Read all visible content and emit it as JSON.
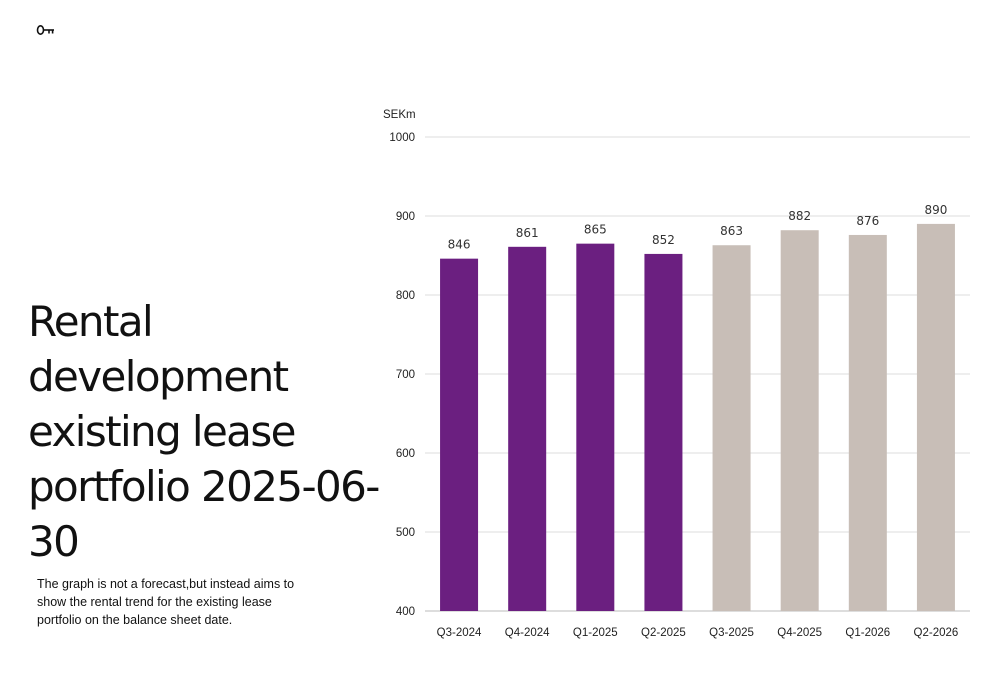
{
  "logo": {
    "icon": "key-icon"
  },
  "title_lines": [
    "Rental development",
    "existing lease",
    "portfolio 2025-06-30"
  ],
  "note": "The graph is not a forecast,but instead aims to show the rental trend for the existing lease portfolio on the balance sheet date.",
  "colors": {
    "actual": "#6B1F80",
    "projected": "#C8BEB7",
    "grid": "#DDDDDD",
    "text": "#111111"
  },
  "chart_data": {
    "type": "bar",
    "title": "Rental development existing lease portfolio 2025-06-30",
    "ylabel": "SEKm",
    "xlabel": "",
    "ylim": [
      400,
      1000
    ],
    "yticks": [
      400,
      500,
      600,
      700,
      800,
      900,
      1000
    ],
    "grid": true,
    "categories": [
      "Q3-2024",
      "Q4-2024",
      "Q1-2025",
      "Q2-2025",
      "Q3-2025",
      "Q4-2025",
      "Q1-2026",
      "Q2-2026"
    ],
    "values": [
      846,
      861,
      865,
      852,
      863,
      882,
      876,
      890
    ],
    "data_labels": [
      "846",
      "861",
      "865",
      "852",
      "863",
      "882",
      "876",
      "890"
    ],
    "bar_groups": [
      "actual",
      "actual",
      "actual",
      "actual",
      "projected",
      "projected",
      "projected",
      "projected"
    ]
  }
}
